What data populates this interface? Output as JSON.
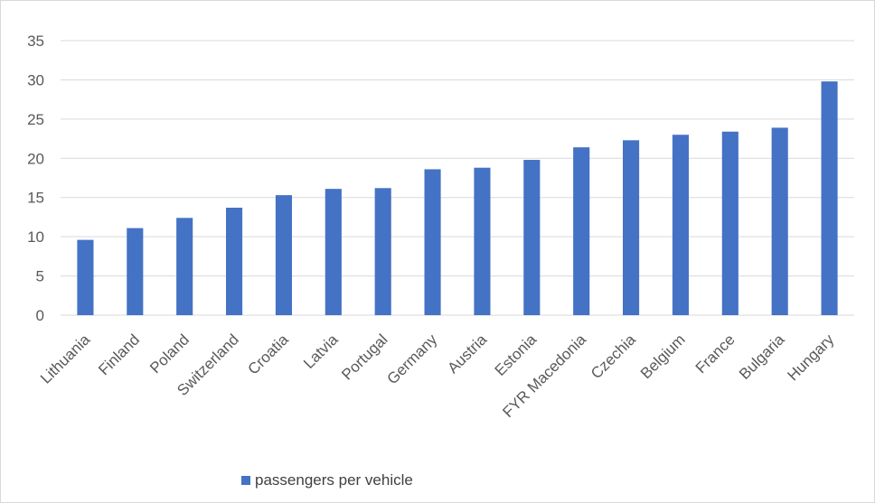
{
  "chart_data": {
    "type": "bar",
    "categories": [
      "Lithuania",
      "Finland",
      "Poland",
      "Switzerland",
      "Croatia",
      "Latvia",
      "Portugal",
      "Germany",
      "Austria",
      "Estonia",
      "FYR Macedonia",
      "Czechia",
      "Belgium",
      "France",
      "Bulgaria",
      "Hungary"
    ],
    "series": [
      {
        "name": "passengers per vehicle",
        "color": "#4472c4",
        "values": [
          9.6,
          11.1,
          12.4,
          13.7,
          15.3,
          16.1,
          16.2,
          18.6,
          18.8,
          19.8,
          21.4,
          22.3,
          23.0,
          23.4,
          23.9,
          29.8
        ]
      }
    ],
    "title": "",
    "xlabel": "",
    "ylabel": "",
    "ylim": [
      0,
      35
    ],
    "yticks": [
      0,
      5,
      10,
      15,
      20,
      25,
      30,
      35
    ],
    "grid": true,
    "legend_position": "bottom-left"
  },
  "colors": {
    "bar": "#4472c4",
    "grid": "#d9d9d9",
    "axis_text": "#595959"
  }
}
